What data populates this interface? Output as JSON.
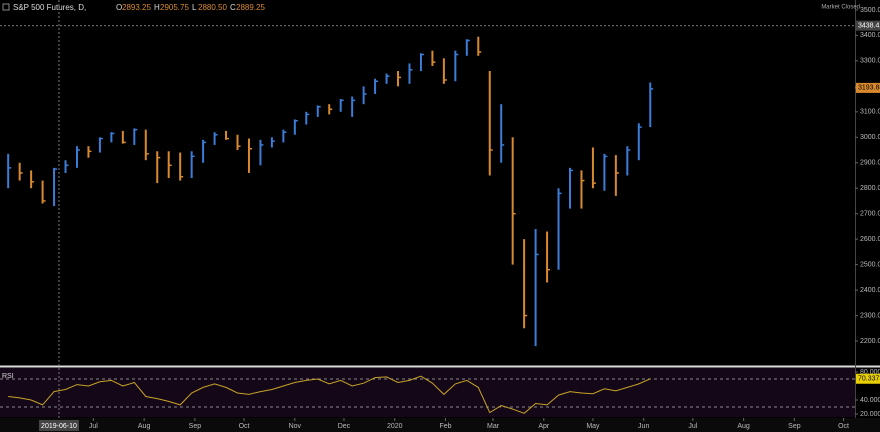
{
  "header": {
    "title": "S&P 500 Futures, D,",
    "status": "Market Closed",
    "legend": [
      {
        "key": "O",
        "value": {
          "value": 2893.25,
          "label": "2893.25"
        }
      },
      {
        "key": "H",
        "value": {
          "value": 2905.75,
          "label": "2905.75"
        }
      },
      {
        "key": "L",
        "value": {
          "value": 2880.5,
          "label": "2880.50"
        }
      },
      {
        "key": "C",
        "value": {
          "value": 2889.25,
          "label": "2889.25"
        }
      }
    ]
  },
  "chart_data": [
    {
      "type": "ohlc",
      "up_color": "#3b7dd8",
      "down_color": "#d98a2e",
      "x": [
        "2019-05-10",
        "2019-05-17",
        "2019-05-24",
        "2019-05-31",
        "2019-06-07",
        "2019-06-14",
        "2019-06-21",
        "2019-06-28",
        "2019-07-05",
        "2019-07-12",
        "2019-07-19",
        "2019-07-26",
        "2019-08-02",
        "2019-08-09",
        "2019-08-16",
        "2019-08-23",
        "2019-08-30",
        "2019-09-06",
        "2019-09-13",
        "2019-09-20",
        "2019-09-27",
        "2019-10-04",
        "2019-10-11",
        "2019-10-18",
        "2019-10-25",
        "2019-11-01",
        "2019-11-08",
        "2019-11-15",
        "2019-11-22",
        "2019-11-29",
        "2019-12-06",
        "2019-12-13",
        "2019-12-20",
        "2019-12-27",
        "2020-01-03",
        "2020-01-10",
        "2020-01-17",
        "2020-01-24",
        "2020-01-31",
        "2020-02-07",
        "2020-02-14",
        "2020-02-21",
        "2020-02-28",
        "2020-03-06",
        "2020-03-13",
        "2020-03-20",
        "2020-03-27",
        "2020-04-03",
        "2020-04-10",
        "2020-04-17",
        "2020-04-24",
        "2020-05-01",
        "2020-05-08",
        "2020-05-15",
        "2020-05-22",
        "2020-05-29",
        "2020-06-05"
      ],
      "high": [
        2935,
        2900,
        2870,
        2830,
        2880,
        2910,
        2965,
        2965,
        3000,
        3020,
        3025,
        3035,
        3030,
        2945,
        2945,
        2940,
        2945,
        2990,
        3020,
        3025,
        3010,
        2995,
        2990,
        3000,
        3030,
        3070,
        3100,
        3125,
        3130,
        3150,
        3160,
        3200,
        3230,
        3250,
        3260,
        3290,
        3330,
        3340,
        3310,
        3340,
        3385,
        3395,
        3260,
        3130,
        3000,
        2600,
        2640,
        2630,
        2800,
        2880,
        2870,
        2960,
        2935,
        2930,
        2965,
        3055,
        3215
      ],
      "low": [
        2800,
        2830,
        2800,
        2740,
        2730,
        2860,
        2880,
        2920,
        2940,
        2980,
        2975,
        2970,
        2910,
        2820,
        2840,
        2830,
        2840,
        2900,
        2970,
        2990,
        2950,
        2860,
        2890,
        2960,
        2980,
        3010,
        3050,
        3080,
        3090,
        3100,
        3080,
        3130,
        3170,
        3210,
        3200,
        3210,
        3260,
        3280,
        3210,
        3220,
        3320,
        3320,
        2850,
        2900,
        2500,
        2250,
        2180,
        2430,
        2480,
        2720,
        2720,
        2800,
        2790,
        2770,
        2850,
        2910,
        3040
      ],
      "close": [
        2880,
        2860,
        2825,
        2750,
        2875,
        2890,
        2950,
        2945,
        2995,
        3015,
        2980,
        3030,
        2935,
        2920,
        2890,
        2845,
        2925,
        2980,
        3010,
        2995,
        2965,
        2955,
        2970,
        2985,
        3020,
        3065,
        3090,
        3120,
        3110,
        3145,
        3145,
        3170,
        3220,
        3240,
        3235,
        3265,
        3325,
        3295,
        3225,
        3325,
        3380,
        3335,
        2950,
        2970,
        2700,
        2300,
        2540,
        2480,
        2780,
        2870,
        2830,
        2820,
        2925,
        2860,
        2950,
        3040,
        3190
      ],
      "xlim": [
        "2019-05-05",
        "2020-10-08"
      ],
      "xticks": [
        {
          "value": "2019-07-01",
          "label": "Jul"
        },
        {
          "value": "2019-08-01",
          "label": "Aug"
        },
        {
          "value": "2019-09-01",
          "label": "Sep"
        },
        {
          "value": "2019-10-01",
          "label": "Oct"
        },
        {
          "value": "2019-11-01",
          "label": "Nov"
        },
        {
          "value": "2019-12-01",
          "label": "Dec"
        },
        {
          "value": "2020-01-01",
          "label": "2020"
        },
        {
          "value": "2020-02-01",
          "label": "Feb"
        },
        {
          "value": "2020-03-01",
          "label": "Mar"
        },
        {
          "value": "2020-04-01",
          "label": "Apr"
        },
        {
          "value": "2020-05-01",
          "label": "May"
        },
        {
          "value": "2020-06-01",
          "label": "Jun"
        },
        {
          "value": "2020-07-01",
          "label": "Jul"
        },
        {
          "value": "2020-08-01",
          "label": "Aug"
        },
        {
          "value": "2020-09-01",
          "label": "Sep"
        },
        {
          "value": "2020-10-01",
          "label": "Oct"
        }
      ],
      "ylim": [
        2102,
        3539
      ],
      "yticks": [
        {
          "value": 3500,
          "label": "3500.00"
        },
        {
          "value": 3400,
          "label": "3400.00"
        },
        {
          "value": 3300,
          "label": "3300.00"
        },
        {
          "value": 3200,
          "label": "3200.00"
        },
        {
          "value": 3100,
          "label": "3100.00"
        },
        {
          "value": 3000,
          "label": "3000.00"
        },
        {
          "value": 2900,
          "label": "2900.00"
        },
        {
          "value": 2800,
          "label": "2800.00"
        },
        {
          "value": 2700,
          "label": "2700.00"
        },
        {
          "value": 2600,
          "label": "2600.00"
        },
        {
          "value": 2500,
          "label": "2500.00"
        },
        {
          "value": 2400,
          "label": "2400.00"
        },
        {
          "value": 2300,
          "label": "2300.00"
        },
        {
          "value": 2200,
          "label": "2200.00"
        }
      ],
      "crosshair": {
        "x": {
          "value": "2019-06-10",
          "label": "2019-06-10"
        },
        "y": {
          "value": 3438.41,
          "label": "3438.41"
        }
      },
      "last_price": {
        "value": 3193.88,
        "label": "3193.88"
      }
    },
    {
      "type": "line",
      "name": "RSI",
      "color": "#c9a227",
      "values": [
        45,
        43,
        40,
        33,
        52,
        55,
        62,
        60,
        66,
        68,
        60,
        65,
        45,
        42,
        38,
        33,
        50,
        58,
        63,
        58,
        50,
        48,
        52,
        55,
        60,
        65,
        68,
        70,
        63,
        68,
        60,
        64,
        72,
        73,
        65,
        68,
        74,
        64,
        48,
        63,
        68,
        58,
        22,
        32,
        27,
        21,
        35,
        33,
        47,
        52,
        50,
        49,
        56,
        53,
        58,
        63,
        70.3373
      ],
      "value_labels": {
        "56": "70.3373"
      },
      "ylim": [
        15.7,
        85.7
      ],
      "yticks": [
        {
          "value": 80,
          "label": "80.0000"
        },
        {
          "value": 40,
          "label": "40.0000"
        },
        {
          "value": 20,
          "label": "20.0000"
        }
      ],
      "levels": [
        70,
        30
      ]
    }
  ]
}
